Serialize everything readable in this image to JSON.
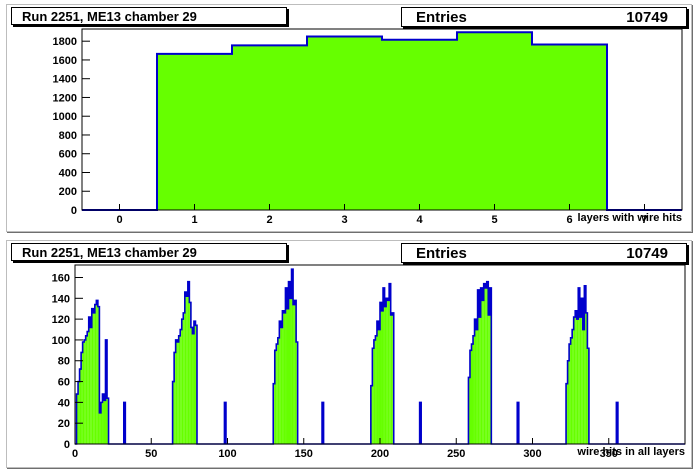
{
  "chart_data": [
    {
      "type": "bar",
      "title": "Run 2251, ME13 chamber 29",
      "stats_label": "Entries",
      "stats_value": "10749",
      "xlabel": "layers with wire hits",
      "ylabel": "",
      "xlim": [
        -0.5,
        7.5
      ],
      "ylim": [
        0,
        1930
      ],
      "x_ticks": [
        "0",
        "1",
        "2",
        "3",
        "4",
        "5",
        "6",
        "7"
      ],
      "y_ticks": [
        "0",
        "200",
        "400",
        "600",
        "800",
        "1000",
        "1200",
        "1400",
        "1600",
        "1800"
      ],
      "categories": [
        "0",
        "1",
        "2",
        "3",
        "4",
        "5",
        "6"
      ],
      "values": [
        0,
        1665,
        1755,
        1850,
        1815,
        1895,
        1765
      ],
      "fill_color": "#66ff00",
      "line_color": "#0000cc"
    },
    {
      "type": "bar",
      "title": "Run 2251, ME13 chamber 29",
      "stats_label": "Entries",
      "stats_value": "10749",
      "xlabel": "wire hits in all layers",
      "ylabel": "",
      "xlim": [
        0,
        400
      ],
      "ylim": [
        0,
        172
      ],
      "x_ticks": [
        "0",
        "50",
        "100",
        "150",
        "200",
        "250",
        "300",
        "350"
      ],
      "y_ticks": [
        "0",
        "20",
        "40",
        "60",
        "80",
        "100",
        "120",
        "140",
        "160"
      ],
      "fill_color": "#66ff00",
      "line_color": "#0000cc",
      "bin_width": 1,
      "series": [
        {
          "name": "",
          "x_start": 1,
          "values": [
            48,
            60,
            72,
            88,
            98,
            100,
            104,
            108,
            122,
            112,
            130,
            126,
            134,
            138,
            132,
            30,
            40,
            48,
            42,
            100,
            44
          ]
        },
        {
          "name": "",
          "x_start": 32,
          "values": [
            40
          ]
        },
        {
          "name": "",
          "x_start": 64,
          "values": [
            60,
            88,
            100,
            98,
            104,
            110,
            120,
            126,
            146,
            142,
            156,
            136,
            112,
            106,
            118,
            114
          ]
        },
        {
          "name": "",
          "x_start": 98,
          "values": [
            40
          ]
        },
        {
          "name": "",
          "x_start": 130,
          "values": [
            58,
            90,
            96,
            102,
            118,
            112,
            128,
            126,
            150,
            130,
            156,
            140,
            168,
            134,
            138,
            98
          ]
        },
        {
          "name": "",
          "x_start": 162,
          "values": [
            40
          ]
        },
        {
          "name": "",
          "x_start": 194,
          "values": [
            56,
            92,
            100,
            104,
            118,
            110,
            136,
            128,
            150,
            132,
            140,
            138,
            154,
            124,
            126
          ]
        },
        {
          "name": "",
          "x_start": 226,
          "values": [
            40
          ]
        },
        {
          "name": "",
          "x_start": 258,
          "values": [
            64,
            90,
            96,
            104,
            120,
            110,
            148,
            122,
            150,
            138,
            154,
            150,
            156,
            124,
            150
          ]
        },
        {
          "name": "",
          "x_start": 290,
          "values": [
            40
          ]
        },
        {
          "name": "",
          "x_start": 322,
          "values": [
            58,
            80,
            96,
            102,
            110,
            122,
            128,
            120,
            150,
            122,
            140,
            110,
            152,
            126,
            92
          ]
        },
        {
          "name": "",
          "x_start": 355,
          "values": [
            40
          ]
        }
      ]
    }
  ]
}
